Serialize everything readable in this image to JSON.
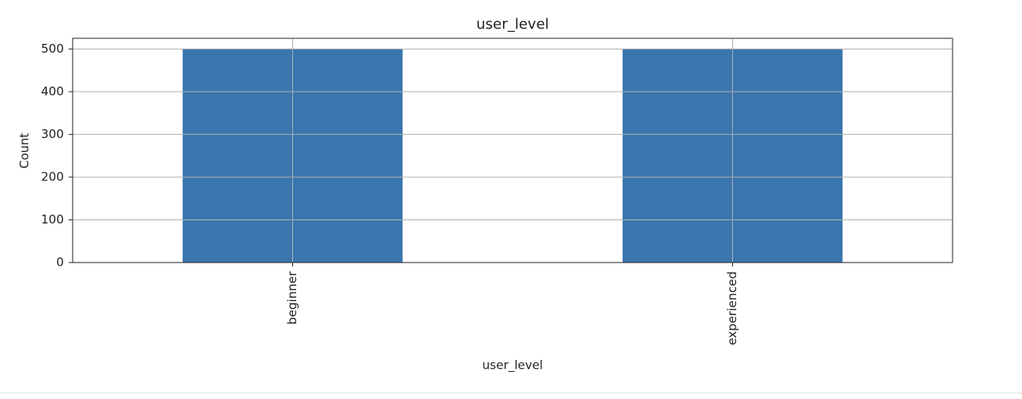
{
  "chart_data": {
    "type": "bar",
    "title": "user_level",
    "x_label": "user_level",
    "y_label": "Count",
    "categories": [
      "beginner",
      "experienced"
    ],
    "values": [
      500,
      500
    ],
    "color": "#3a75af",
    "ylim": [
      0,
      525
    ],
    "yticks": [
      0,
      100,
      200,
      300,
      400,
      500
    ],
    "grid": true
  }
}
